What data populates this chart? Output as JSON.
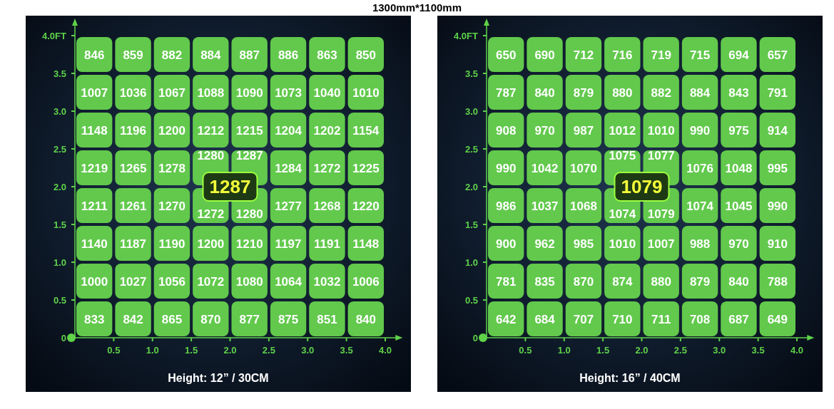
{
  "chart_data": [
    {
      "type": "heatmap",
      "title": "1300mm*1100mm",
      "xlabel": "Height: 12” / 30CM",
      "color": "#62c94c",
      "data_labels": true,
      "x": [
        0.25,
        0.75,
        1.25,
        1.75,
        2.25,
        2.75,
        3.25,
        3.75
      ],
      "y": [
        3.75,
        3.25,
        2.75,
        2.25,
        1.75,
        1.25,
        0.75,
        0.25
      ],
      "xlim": [
        0,
        4.15
      ],
      "ylim": [
        0,
        4.15
      ],
      "xticks": [
        {
          "value": 0.5,
          "label": "0.5"
        },
        {
          "value": 1,
          "label": "1.0"
        },
        {
          "value": 1.5,
          "label": "1.5"
        },
        {
          "value": 2,
          "label": "2.0"
        },
        {
          "value": 2.5,
          "label": "2.5"
        },
        {
          "value": 3,
          "label": "3.0"
        },
        {
          "value": 3.5,
          "label": "3.5"
        },
        {
          "value": 4,
          "label": "4.0"
        }
      ],
      "yticks": [
        0,
        0.5,
        {
          "value": 1,
          "label": "1.0"
        },
        1.5,
        {
          "value": 2,
          "label": "2.0"
        },
        2.5,
        {
          "value": 3,
          "label": "3.0"
        },
        3.5,
        {
          "value": 4,
          "label": "4.0FT"
        }
      ],
      "cells": [
        [
          846,
          859,
          882,
          884,
          887,
          886,
          863,
          850
        ],
        [
          1007,
          1036,
          1067,
          1088,
          1090,
          1073,
          1040,
          1010
        ],
        [
          1148,
          1196,
          1200,
          1212,
          1215,
          1204,
          1202,
          1154
        ],
        [
          1219,
          1265,
          1278,
          1280,
          1287,
          1284,
          1272,
          1225
        ],
        [
          1211,
          1261,
          1270,
          1272,
          1280,
          1277,
          1268,
          1220
        ],
        [
          1140,
          1187,
          1190,
          1200,
          1210,
          1197,
          1191,
          1148
        ],
        [
          1000,
          1027,
          1056,
          1072,
          1080,
          1064,
          1032,
          1006
        ],
        [
          833,
          842,
          865,
          870,
          877,
          875,
          851,
          840
        ]
      ],
      "annotations": [
        "1287"
      ]
    },
    {
      "type": "heatmap",
      "xlabel": "Height: 16” / 40CM",
      "color": "#62c94c",
      "data_labels": true,
      "x": [
        0.25,
        0.75,
        1.25,
        1.75,
        2.25,
        2.75,
        3.25,
        3.75
      ],
      "y": [
        3.75,
        3.25,
        2.75,
        2.25,
        1.75,
        1.25,
        0.75,
        0.25
      ],
      "xlim": [
        0,
        4.15
      ],
      "ylim": [
        0,
        4.15
      ],
      "xticks": [
        {
          "value": 0.5,
          "label": "0.5"
        },
        {
          "value": 1,
          "label": "1.0"
        },
        {
          "value": 1.5,
          "label": "1.5"
        },
        {
          "value": 2,
          "label": "2.0"
        },
        {
          "value": 2.5,
          "label": "2.5"
        },
        {
          "value": 3,
          "label": "3.0"
        },
        {
          "value": 3.5,
          "label": "3.5"
        },
        {
          "value": 4,
          "label": "4.0"
        }
      ],
      "yticks": [
        0,
        0.5,
        {
          "value": 1,
          "label": "1.0"
        },
        1.5,
        {
          "value": 2,
          "label": "2.0"
        },
        2.5,
        {
          "value": 3,
          "label": "3.0"
        },
        3.5,
        {
          "value": 4,
          "label": "4.0FT"
        }
      ],
      "cells": [
        [
          650,
          690,
          712,
          716,
          719,
          715,
          694,
          657
        ],
        [
          787,
          840,
          879,
          880,
          882,
          884,
          843,
          791
        ],
        [
          908,
          970,
          987,
          1012,
          1010,
          990,
          975,
          914
        ],
        [
          990,
          1042,
          1070,
          1075,
          1077,
          1076,
          1048,
          995
        ],
        [
          986,
          1037,
          1068,
          1074,
          1079,
          1074,
          1045,
          990
        ],
        [
          900,
          962,
          985,
          1010,
          1007,
          988,
          970,
          910
        ],
        [
          781,
          835,
          870,
          874,
          880,
          879,
          840,
          788
        ],
        [
          642,
          684,
          707,
          710,
          711,
          708,
          687,
          649
        ]
      ],
      "annotations": [
        "1079"
      ]
    }
  ]
}
